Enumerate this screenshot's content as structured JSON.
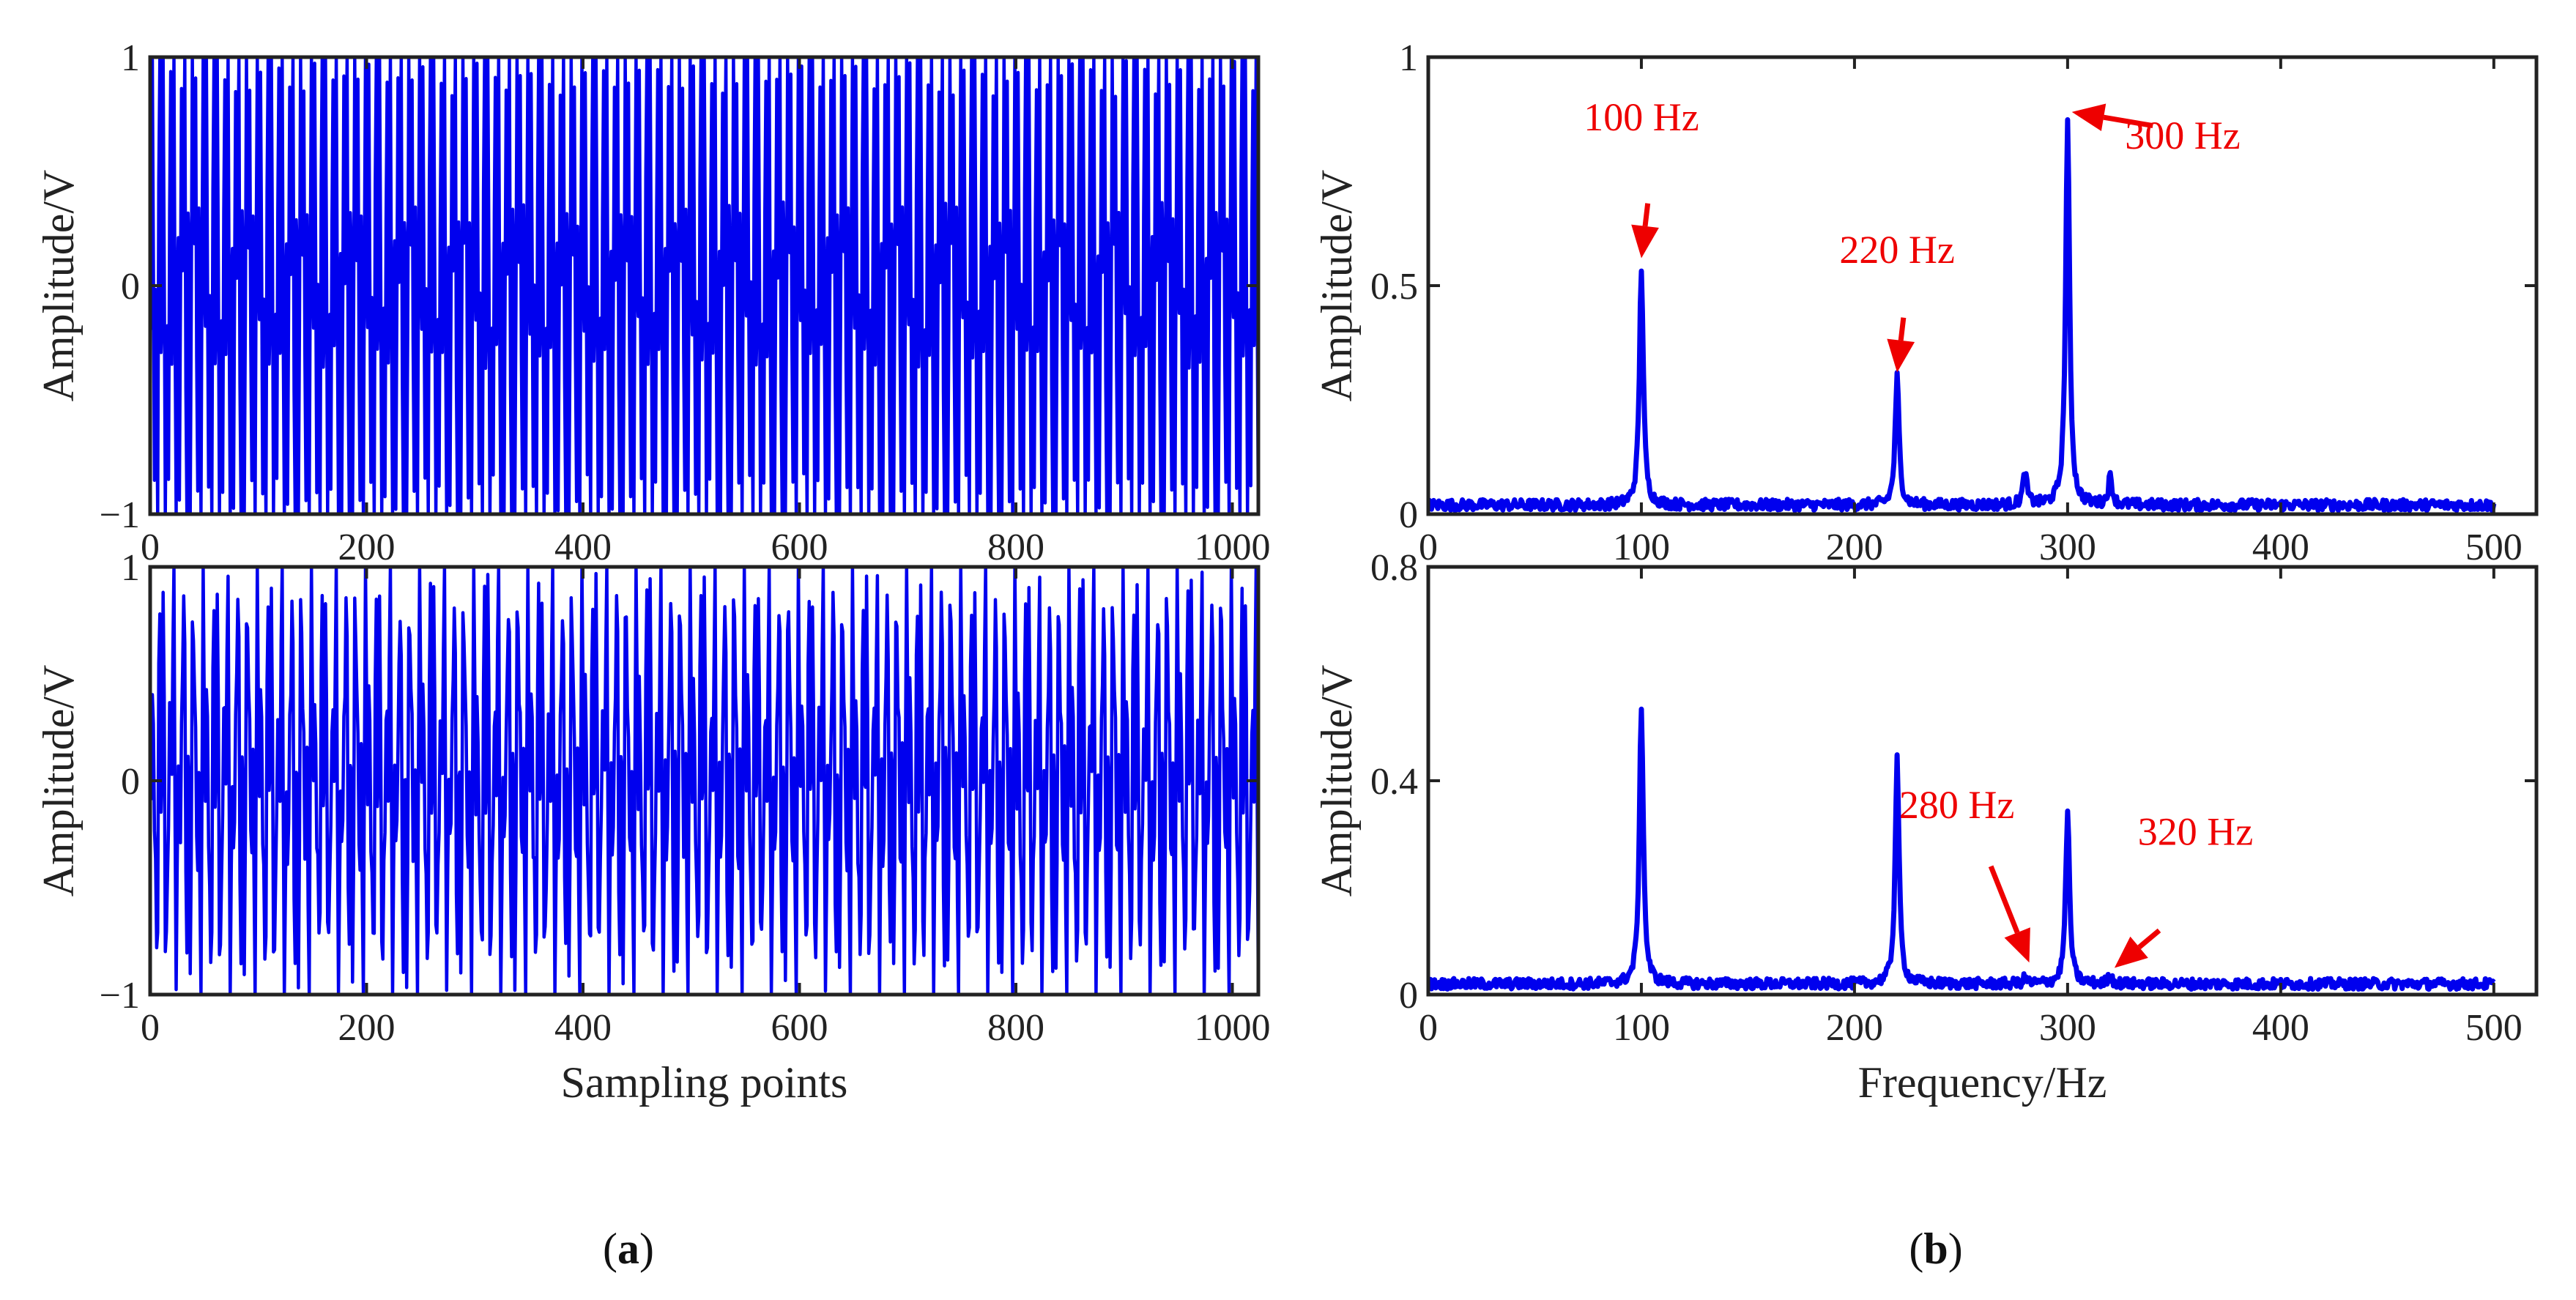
{
  "colors": {
    "signal": "#0000ee",
    "annotation": "#ee0000",
    "axis": "#222222"
  },
  "captions": {
    "a": "a",
    "b": "b",
    "open": "(",
    "close": ")"
  },
  "chart_data": [
    {
      "id": "ta",
      "type": "line",
      "signal": "time",
      "title": "",
      "xlabel": "",
      "ylabel": "Amplitude/V",
      "xlim": [
        0,
        1024
      ],
      "ylim": [
        -1,
        1
      ],
      "xticks": [
        0,
        200,
        400,
        600,
        800,
        1000
      ],
      "xtick_labels": [
        "0",
        "200",
        "400",
        "600",
        "800",
        "1000"
      ],
      "yticks": [
        -1,
        0,
        1
      ],
      "ytick_labels": [
        "−1",
        "0",
        "1"
      ],
      "sample_rate_hz": 1000,
      "components": [
        {
          "freq_hz": 100,
          "amp": 0.55
        },
        {
          "freq_hz": 220,
          "amp": 0.3
        },
        {
          "freq_hz": 300,
          "amp": 0.87
        }
      ],
      "noise": 0.05,
      "clip": [
        -1,
        1
      ],
      "annotations": []
    },
    {
      "id": "fa",
      "type": "line",
      "signal": "spectrum",
      "title": "",
      "xlabel": "",
      "ylabel": "Amplitude/V",
      "xlim": [
        0,
        520
      ],
      "ylim": [
        0,
        1
      ],
      "xticks": [
        0,
        100,
        200,
        300,
        400,
        500
      ],
      "xtick_labels": [
        "0",
        "100",
        "200",
        "300",
        "400",
        "500"
      ],
      "yticks": [
        0,
        0.5,
        1
      ],
      "ytick_labels": [
        "0",
        "0.5",
        "1"
      ],
      "freq_range": [
        0,
        500
      ],
      "baseline": 0.02,
      "noise": 0.012,
      "peaks": [
        {
          "freq_hz": 100,
          "amp": 0.54
        },
        {
          "freq_hz": 220,
          "amp": 0.3
        },
        {
          "freq_hz": 280,
          "amp": 0.09
        },
        {
          "freq_hz": 300,
          "amp": 0.86
        },
        {
          "freq_hz": 320,
          "amp": 0.08
        }
      ],
      "annotations": [
        {
          "text": "100 Hz",
          "label_at": [
            100,
            0.84
          ],
          "arrow_from": [
            103,
            0.68
          ],
          "arrow_to": [
            100,
            0.56
          ]
        },
        {
          "text": "220 Hz",
          "label_at": [
            220,
            0.55
          ],
          "arrow_from": [
            223,
            0.43
          ],
          "arrow_to": [
            220,
            0.31
          ]
        },
        {
          "text": "300 Hz",
          "label_at": [
            354,
            0.8
          ],
          "arrow_from": [
            340,
            0.85
          ],
          "arrow_to": [
            302,
            0.88
          ]
        }
      ]
    },
    {
      "id": "tb",
      "type": "line",
      "signal": "time",
      "title": "",
      "xlabel": "Sampling points",
      "ylabel": "Amplitude/V",
      "xlim": [
        0,
        1024
      ],
      "ylim": [
        -1,
        1
      ],
      "xticks": [
        0,
        200,
        400,
        600,
        800,
        1000
      ],
      "xtick_labels": [
        "0",
        "200",
        "400",
        "600",
        "800",
        "1000"
      ],
      "yticks": [
        -1,
        0,
        1
      ],
      "ytick_labels": [
        "−1",
        "0",
        "1"
      ],
      "sample_rate_hz": 1000,
      "components": [
        {
          "freq_hz": 100,
          "amp": 0.55
        },
        {
          "freq_hz": 220,
          "amp": 0.45
        },
        {
          "freq_hz": 300,
          "amp": 0.35
        },
        {
          "freq_hz": 280,
          "amp": 0.03
        },
        {
          "freq_hz": 320,
          "amp": 0.03
        }
      ],
      "noise": 0.08,
      "clip": [
        -1,
        1
      ],
      "annotations": []
    },
    {
      "id": "fb",
      "type": "line",
      "signal": "spectrum",
      "title": "",
      "xlabel": "Frequency/Hz",
      "ylabel": "Amplitude/V",
      "xlim": [
        0,
        520
      ],
      "ylim": [
        0,
        0.8
      ],
      "xticks": [
        0,
        100,
        200,
        300,
        400,
        500
      ],
      "xtick_labels": [
        "0",
        "100",
        "200",
        "300",
        "400",
        "500"
      ],
      "yticks": [
        0,
        0.4,
        0.8
      ],
      "ytick_labels": [
        "0",
        "0.4",
        "0.8"
      ],
      "freq_range": [
        0,
        500
      ],
      "baseline": 0.02,
      "noise": 0.01,
      "peaks": [
        {
          "freq_hz": 100,
          "amp": 0.54
        },
        {
          "freq_hz": 220,
          "amp": 0.44
        },
        {
          "freq_hz": 280,
          "amp": 0.03
        },
        {
          "freq_hz": 300,
          "amp": 0.34
        },
        {
          "freq_hz": 320,
          "amp": 0.035
        }
      ],
      "annotations": [
        {
          "text": "280 Hz",
          "label_at": [
            248,
            0.33
          ],
          "arrow_from": [
            264,
            0.24
          ],
          "arrow_to": [
            282,
            0.06
          ]
        },
        {
          "text": "320 Hz",
          "label_at": [
            360,
            0.28
          ],
          "arrow_from": [
            343,
            0.12
          ],
          "arrow_to": [
            322,
            0.05
          ]
        }
      ]
    }
  ]
}
